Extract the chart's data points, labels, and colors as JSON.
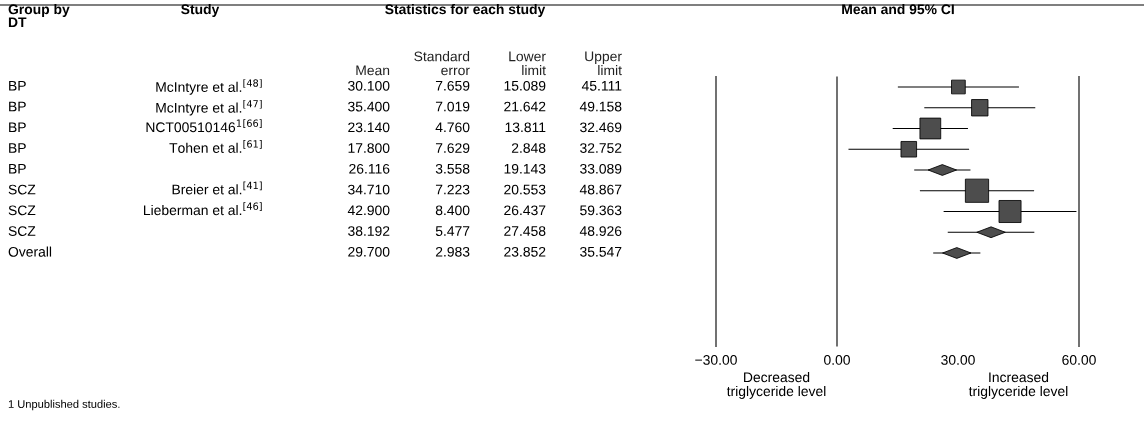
{
  "chart_data": [
    {
      "type": "other",
      "title": "Statistics for each study",
      "categories": [
        "Group by\nDT",
        "Study",
        "Mean",
        "Standard\nerror",
        "Lower\nlimit",
        "Upper\nlimit"
      ],
      "cell_labels": [
        [
          "BP",
          "McIntyre et al.$^{[48]}$",
          "30.100",
          "7.659",
          "15.089",
          "45.111"
        ],
        [
          "BP",
          "McIntyre et al.$^{[47]}$",
          "35.400",
          "7.019",
          "21.642",
          "49.158"
        ],
        [
          "BP",
          "NCT00510146$^{1}$$^{[66]}$",
          "23.140",
          "4.760",
          "13.811",
          "32.469"
        ],
        [
          "BP",
          "Tohen et al.$^{[61]}$",
          "17.800",
          "7.629",
          "2.848",
          "32.752"
        ],
        [
          "BP",
          null,
          "26.116",
          "3.558",
          "19.143",
          "33.089"
        ],
        [
          "SCZ",
          "Breier et al.$^{[41]}$",
          "34.710",
          "7.223",
          "20.553",
          "48.867"
        ],
        [
          "SCZ",
          "Lieberman et al.$^{[46]}$",
          "42.900",
          "8.400",
          "26.437",
          "59.363"
        ],
        [
          "SCZ",
          null,
          "38.192",
          "5.477",
          "27.458",
          "48.926"
        ],
        [
          "Overall",
          null,
          "29.700",
          "2.983",
          "23.852",
          "35.547"
        ]
      ],
      "annotations": [
        "1 Unpublished studies."
      ]
    },
    {
      "type": "scatter",
      "title": "Mean and 95% CI",
      "orientation": "horizontal",
      "categories": [
        null,
        null,
        null,
        null,
        null,
        null,
        null,
        null,
        null,
        null,
        null,
        null,
        null
      ],
      "series": [
        {
          "type": "bubble",
          "marker": "square",
          "color": "#4d4d4d",
          "values": [
            30.1,
            35.4,
            23.14,
            17.8,
            null,
            34.71,
            42.9,
            null,
            null,
            null,
            null,
            null,
            null
          ],
          "errors": [
            [
              15.089,
              45.111
            ],
            [
              21.642,
              49.158
            ],
            [
              13.811,
              32.469
            ],
            [
              2.848,
              32.752
            ],
            null,
            [
              20.553,
              48.867
            ],
            [
              26.437,
              59.363
            ],
            null,
            null,
            null,
            null,
            null,
            null
          ],
          "sizes": [
            0.35,
            0.5,
            0.8,
            0.45,
            null,
            1,
            0.9,
            null,
            null,
            null,
            null,
            null,
            null
          ]
        },
        {
          "type": "scatter",
          "marker": "diamond",
          "color": "#4d4d4d",
          "values": [
            null,
            null,
            null,
            null,
            26.116,
            null,
            null,
            38.192,
            29.7,
            null,
            null,
            null,
            null
          ],
          "errors": [
            null,
            null,
            null,
            null,
            [
              19.143,
              33.089
            ],
            null,
            null,
            [
              27.458,
              48.926
            ],
            [
              23.852,
              35.547
            ],
            null,
            null,
            null,
            null
          ]
        }
      ],
      "xlim": [
        -30,
        60
      ],
      "xticks": [
        {
          "value": -30,
          "label": "−30.00"
        },
        {
          "value": 0,
          "label": "0.00"
        },
        {
          "value": 30,
          "label": "30.00"
        },
        {
          "value": 60,
          "label": "60.00"
        }
      ],
      "ref_lines": [
        {
          "axis": "x",
          "value": 0
        }
      ],
      "annotations": [
        "Decreased\ntriglyceride level",
        "Increased\ntriglyceride level"
      ]
    }
  ]
}
